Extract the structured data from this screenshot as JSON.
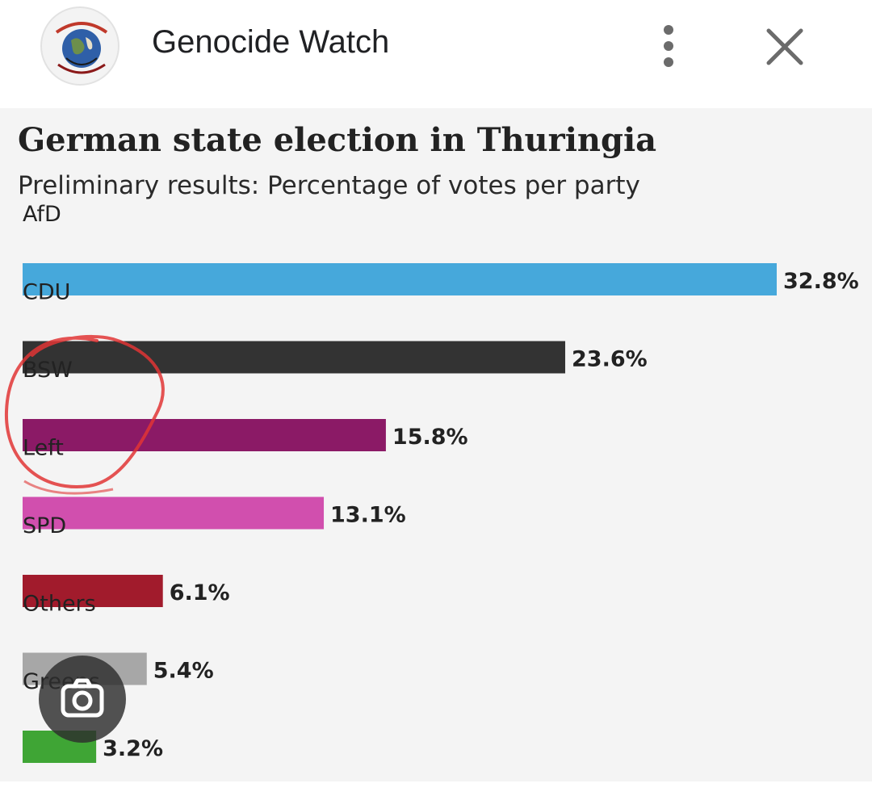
{
  "header": {
    "site_name": "Genocide Watch",
    "logo_icon": "globe-eye-logo",
    "more_icon": "more-vert-icon",
    "close_icon": "close-icon"
  },
  "chart_data": {
    "type": "bar",
    "orientation": "horizontal",
    "title": "German state election in Thuringia",
    "subtitle": "Preliminary results: Percentage of votes per party",
    "categories": [
      "AfD",
      "CDU",
      "BSW",
      "Left",
      "SPD",
      "Others",
      "Greens"
    ],
    "values": [
      32.8,
      23.6,
      15.8,
      13.1,
      6.1,
      5.4,
      3.2
    ],
    "value_labels": [
      "32.8%",
      "23.6%",
      "15.8%",
      "13.1%",
      "6.1%",
      "5.4%",
      "3.2%"
    ],
    "colors": [
      "#46a8db",
      "#333333",
      "#8b1a66",
      "#d14fae",
      "#a11b2c",
      "#a7a7a7",
      "#3fa535"
    ],
    "unit": "%",
    "xlim": [
      0,
      32.8
    ],
    "annotations": [
      {
        "type": "hand-drawn-circle",
        "target": "BSW",
        "color": "#e03535"
      }
    ]
  },
  "overlay": {
    "lens_icon": "camera-lens-icon"
  }
}
